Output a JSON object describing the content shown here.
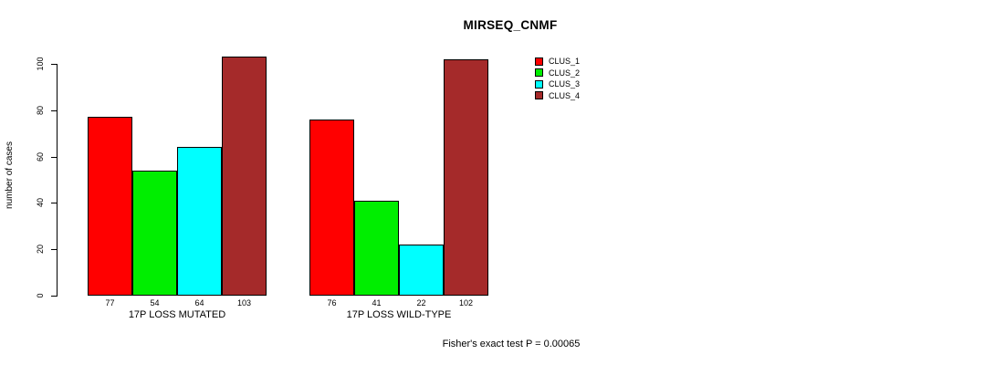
{
  "title": "MIRSEQ_CNMF",
  "footer": "Fisher's exact test P = 0.00065",
  "colors": {
    "clus_1": "#FF0000",
    "clus_2": "#00EE00",
    "clus_3": "#00FFFF",
    "clus_4": "#A52A2A",
    "axis": "#000000",
    "background": "#FFFFFF"
  },
  "chart_data": {
    "type": "bar",
    "title": "MIRSEQ_CNMF",
    "xlabel": "",
    "ylabel": "number of cases",
    "ylim": [
      0,
      100
    ],
    "yticks": [
      0,
      20,
      40,
      60,
      80,
      100
    ],
    "grid": false,
    "legend_position": "right",
    "categories": [
      "17P LOSS MUTATED",
      "17P LOSS WILD-TYPE"
    ],
    "series": [
      {
        "name": "CLUS_1",
        "color": "#FF0000",
        "values": [
          77,
          76
        ]
      },
      {
        "name": "CLUS_2",
        "color": "#00EE00",
        "values": [
          54,
          41
        ]
      },
      {
        "name": "CLUS_3",
        "color": "#00FFFF",
        "values": [
          64,
          22
        ]
      },
      {
        "name": "CLUS_4",
        "color": "#A52A2A",
        "values": [
          103,
          102
        ]
      }
    ],
    "bar_value_labels": [
      [
        77,
        54,
        64,
        103
      ],
      [
        76,
        41,
        22,
        102
      ]
    ],
    "annotation": "Fisher's exact test P = 0.00065"
  }
}
